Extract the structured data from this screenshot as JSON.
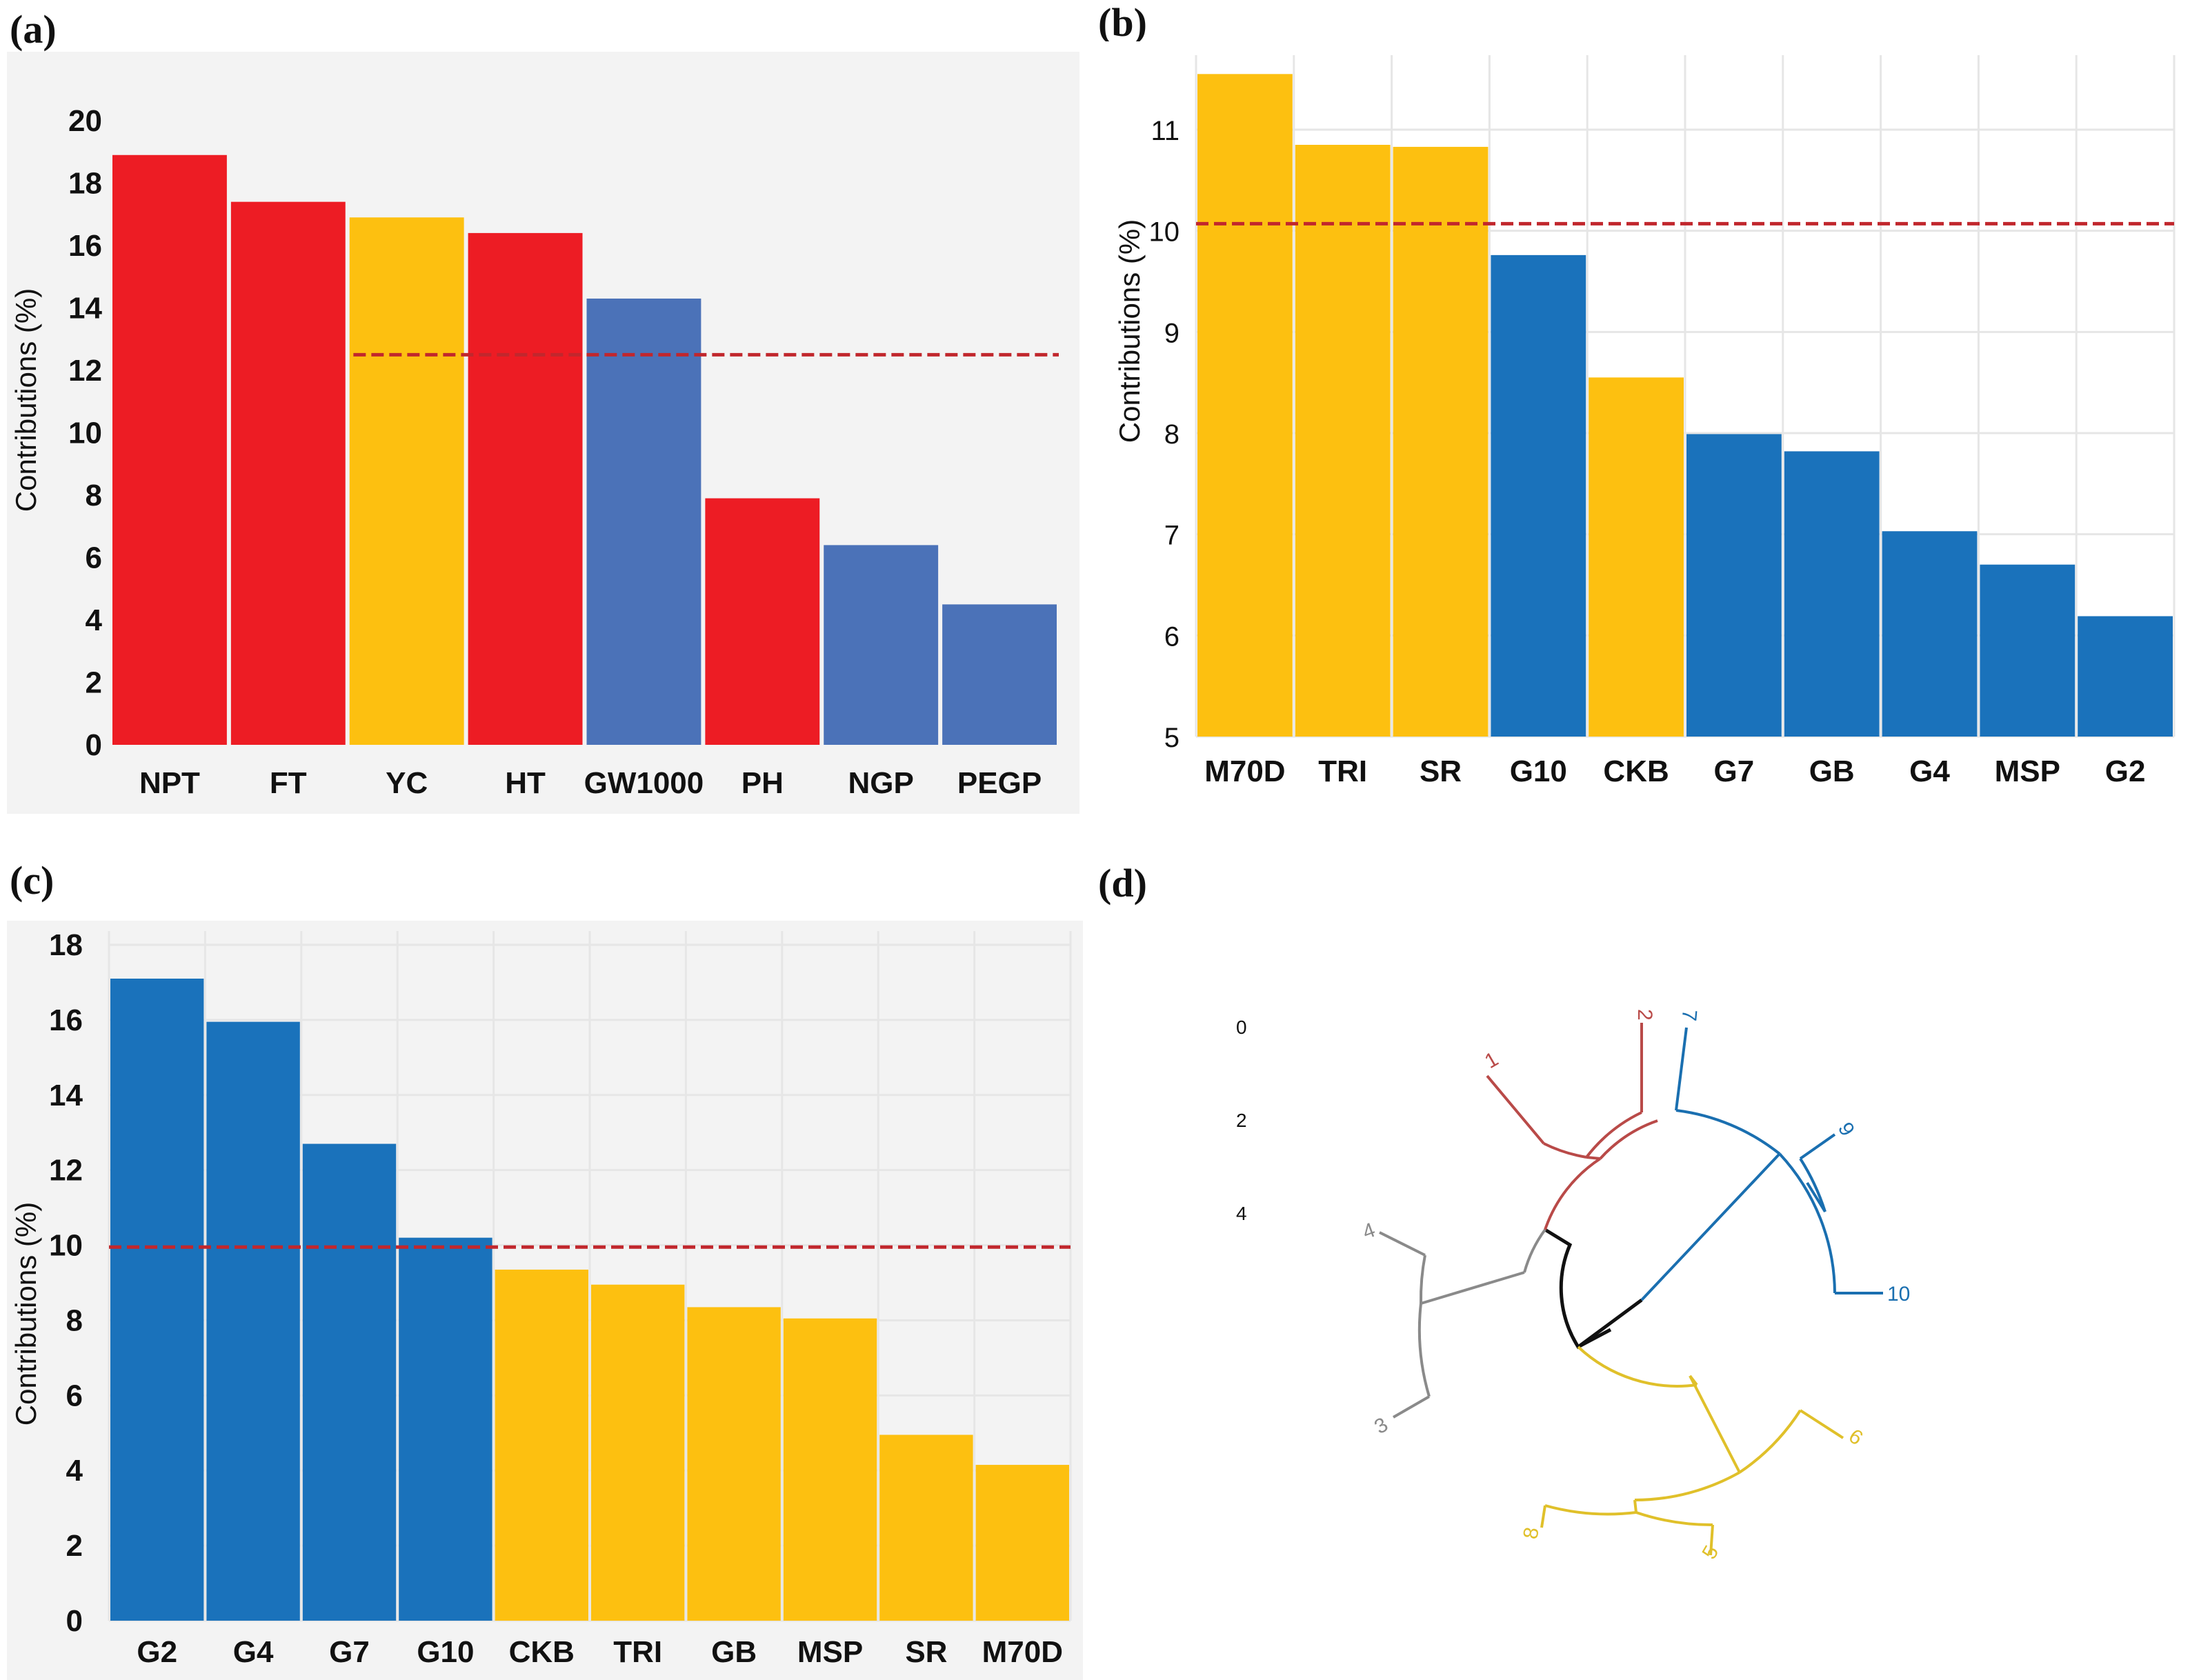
{
  "colors": {
    "red": "#ed1c24",
    "yellow": "#fdc010",
    "blue_a": "#4b72b8",
    "blue": "#1a72bb",
    "threshold": "#c1272d",
    "panel_bg": "#ebebeb",
    "grid": "#ffffff",
    "cluster_red": "#b94a48",
    "cluster_blue": "#1a6fb0",
    "cluster_grey": "#8a8a8a",
    "cluster_yellow": "#e0c02a",
    "cluster_black": "#111111"
  },
  "panels": {
    "a": "(a)",
    "b": "(b)",
    "c": "(c)",
    "d": "(d)"
  },
  "chart_data": [
    {
      "id": "a",
      "type": "bar",
      "ylabel": "Contributions (%)",
      "ylim": [
        0,
        20
      ],
      "yticks": [
        0,
        2,
        4,
        6,
        8,
        10,
        12,
        14,
        16,
        18,
        20
      ],
      "threshold": 12.5,
      "categories": [
        "NPT",
        "FT",
        "YC",
        "HT",
        "GW1000",
        "PH",
        "NGP",
        "PEGP"
      ],
      "values": [
        18.9,
        17.4,
        16.9,
        16.4,
        14.3,
        7.9,
        6.4,
        4.5
      ],
      "bar_colors": [
        "red",
        "red",
        "yellow",
        "red",
        "blue_a",
        "red",
        "blue_a",
        "blue_a"
      ]
    },
    {
      "id": "b",
      "type": "bar",
      "ylabel": "Contributions (%)",
      "ylim": [
        5,
        11.6
      ],
      "yticks": [
        5,
        6,
        7,
        8,
        9,
        10,
        11
      ],
      "threshold": 10.07,
      "categories": [
        "M70D",
        "TRI",
        "SR",
        "G10",
        "CKB",
        "G7",
        "GB",
        "G4",
        "MSP",
        "G2"
      ],
      "values": [
        11.55,
        10.85,
        10.83,
        9.76,
        8.55,
        7.99,
        7.82,
        7.03,
        6.7,
        6.19
      ],
      "bar_colors": [
        "yellow",
        "yellow",
        "yellow",
        "blue",
        "yellow",
        "blue",
        "blue",
        "blue",
        "blue",
        "blue"
      ]
    },
    {
      "id": "c",
      "type": "bar",
      "ylabel": "Contributions (%)",
      "ylim": [
        0,
        18
      ],
      "yticks": [
        0,
        2,
        4,
        6,
        8,
        10,
        12,
        14,
        16,
        18
      ],
      "threshold": 9.95,
      "categories": [
        "G2",
        "G4",
        "G7",
        "G10",
        "CKB",
        "TRI",
        "GB",
        "MSP",
        "SR",
        "M70D"
      ],
      "values": [
        17.1,
        15.95,
        12.7,
        10.2,
        9.35,
        8.95,
        8.35,
        8.05,
        4.95,
        4.15
      ],
      "bar_colors": [
        "blue",
        "blue",
        "blue",
        "blue",
        "yellow",
        "yellow",
        "yellow",
        "yellow",
        "yellow",
        "yellow"
      ]
    }
  ],
  "dendrogram": {
    "scale_ticks": [
      "0",
      "2",
      "4"
    ],
    "leaves": [
      "1",
      "2",
      "7",
      "9",
      "10",
      "6",
      "5",
      "8",
      "3",
      "4"
    ]
  }
}
